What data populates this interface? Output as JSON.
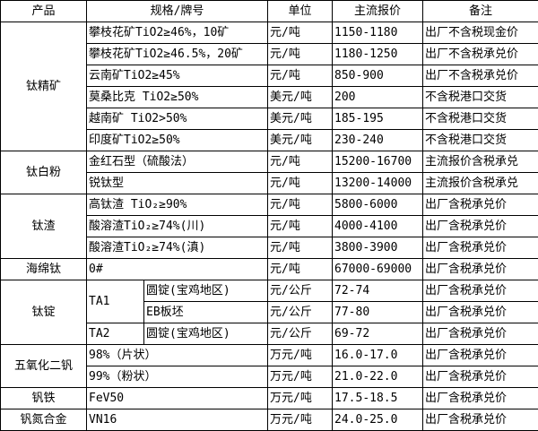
{
  "headers": [
    "产品",
    "规格/牌号",
    "单位",
    "主流报价",
    "备注"
  ],
  "groups": {
    "titanium_concentrate": {
      "name": "钛精矿",
      "rows": [
        {
          "spec": "攀枝花矿TiO2≥46%，10矿",
          "unit": "元/吨",
          "price": "1150-1180",
          "note": "出厂不含税现金价"
        },
        {
          "spec": "攀枝花矿TiO2≥46.5%，20矿",
          "unit": "元/吨",
          "price": "1180-1250",
          "note": "出厂不含税承兑价"
        },
        {
          "spec": "云南矿TiO2≥45%",
          "unit": "元/吨",
          "price": "850-900",
          "note": "出厂不含税承兑价"
        },
        {
          "spec": "莫桑比克 TiO2≥50%",
          "unit": "美元/吨",
          "price": "200",
          "note": "不含税港口交货"
        },
        {
          "spec": "越南矿 TiO2>50%",
          "unit": "美元/吨",
          "price": "185-195",
          "note": "不含税港口交货"
        },
        {
          "spec": "印度矿TiO2≥50%",
          "unit": "美元/吨",
          "price": "230-240",
          "note": "不含税港口交货"
        }
      ]
    },
    "titanium_dioxide": {
      "name": "钛白粉",
      "rows": [
        {
          "spec": "金红石型（硫酸法）",
          "unit": "元/吨",
          "price": "15200-16700",
          "note": "主流报价含税承兑"
        },
        {
          "spec": "锐钛型",
          "unit": "元/吨",
          "price": "13200-14000",
          "note": "主流报价含税承兑"
        }
      ]
    },
    "titanium_slag": {
      "name": "钛渣",
      "rows": [
        {
          "spec": "高钛渣 TiO₂≥90%",
          "unit": "元/吨",
          "price": "5800-6000",
          "note": "出厂含税承兑价"
        },
        {
          "spec": "酸溶渣TiO₂≥74%(川)",
          "unit": "元/吨",
          "price": "4000-4100",
          "note": "出厂含税承兑价"
        },
        {
          "spec": "酸溶渣TiO₂≥74%(滇)",
          "unit": "元/吨",
          "price": "3800-3900",
          "note": "出厂含税承兑价"
        }
      ]
    },
    "sponge_titanium": {
      "name": "海绵钛",
      "rows": [
        {
          "spec": "0#",
          "unit": "元/吨",
          "price": "67000-69000",
          "note": "出厂含税承兑价"
        }
      ]
    },
    "titanium_ingot": {
      "name": "钛锭",
      "rows": [
        {
          "grade": "TA1",
          "spec": "圆锭(宝鸡地区)",
          "unit": "元/公斤",
          "price": "72-74",
          "note": "出厂含税承兑价"
        },
        {
          "spec": "EB板坯",
          "unit": "元/公斤",
          "price": "77-80",
          "note": "出厂含税承兑价"
        },
        {
          "grade": "TA2",
          "spec": "圆锭(宝鸡地区)",
          "unit": "元/公斤",
          "price": "69-72",
          "note": "出厂含税承兑价"
        }
      ]
    },
    "vanadium_pentoxide": {
      "name": "五氧化二钒",
      "rows": [
        {
          "spec": "98%（片状）",
          "unit": "万元/吨",
          "price": "16.0-17.0",
          "note": "出厂含税承兑价"
        },
        {
          "spec": "99%（粉状）",
          "unit": "万元/吨",
          "price": "21.0-22.0",
          "note": "出厂含税承兑价"
        }
      ]
    },
    "ferrovanadium": {
      "name": "钒铁",
      "rows": [
        {
          "spec": "FeV50",
          "unit": "万元/吨",
          "price": "17.5-18.5",
          "note": "出厂含税承兑价"
        }
      ]
    },
    "vanadium_nitrogen": {
      "name": "钒氮合金",
      "rows": [
        {
          "spec": "VN16",
          "unit": "万元/吨",
          "price": "24.0-25.0",
          "note": "出厂含税承兑价"
        }
      ]
    }
  }
}
